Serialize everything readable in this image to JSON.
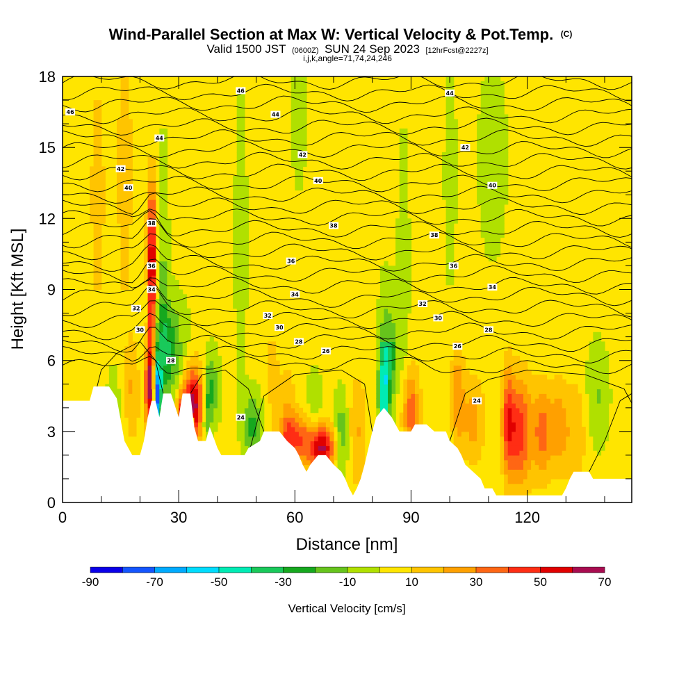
{
  "title": {
    "main": "Wind-Parallel Section at Max W: Vertical Velocity & Pot.Temp.",
    "main_suffix": "(C)",
    "valid_pre": "Valid 1500 JST",
    "valid_z": "(0600Z)",
    "valid_post": "SUN 24 Sep 2023",
    "fcst": "[12hrFcst@2227z]",
    "indices": "i,j,k,angle=71,74,24,246"
  },
  "chart_data": {
    "type": "heatmap",
    "xlabel": "Distance [nm]",
    "ylabel": "Height [Kft MSL]",
    "xlim": [
      0,
      147
    ],
    "ylim": [
      0,
      18
    ],
    "x_ticks": [
      0,
      30,
      60,
      90,
      120
    ],
    "x_tick_labels": [
      "0",
      "30",
      "60",
      "90",
      "120"
    ],
    "y_ticks": [
      0,
      3,
      6,
      9,
      12,
      15,
      18
    ],
    "y_tick_labels": [
      "0",
      "3",
      "6",
      "9",
      "12",
      "15",
      "18"
    ],
    "colorbar": {
      "title": "Vertical Velocity [cm/s]",
      "tick_labels": [
        "-90",
        "-70",
        "-50",
        "-30",
        "-10",
        "10",
        "30",
        "50",
        "70"
      ],
      "tick_values": [
        -90,
        -70,
        -50,
        -30,
        -10,
        10,
        30,
        50,
        70
      ],
      "bin_edges": [
        -90,
        -80,
        -70,
        -60,
        -50,
        -40,
        -30,
        -20,
        -10,
        0,
        10,
        20,
        30,
        40,
        50,
        60,
        70
      ],
      "colors": [
        "#0a00e8",
        "#1455ff",
        "#00aaff",
        "#00dcff",
        "#00ebb4",
        "#19c95a",
        "#16a81e",
        "#66c41c",
        "#b0e000",
        "#ffe500",
        "#ffc400",
        "#ffa000",
        "#ff6614",
        "#ff2d14",
        "#e00000",
        "#a80c50",
        "#5a108c"
      ]
    },
    "terrain_kft": [
      [
        0,
        4.3
      ],
      [
        7,
        4.3
      ],
      [
        8,
        4.9
      ],
      [
        12,
        4.9
      ],
      [
        14,
        4.4
      ],
      [
        15,
        3.5
      ],
      [
        16,
        2.6
      ],
      [
        17,
        2.3
      ],
      [
        18,
        2.0
      ],
      [
        20,
        2.0
      ],
      [
        21,
        2.6
      ],
      [
        22,
        3.6
      ],
      [
        23,
        4.3
      ],
      [
        24,
        4.3
      ],
      [
        25,
        3.6
      ],
      [
        26,
        4.6
      ],
      [
        28,
        4.6
      ],
      [
        30,
        3.6
      ],
      [
        31,
        4.6
      ],
      [
        33,
        4.6
      ],
      [
        34,
        3.2
      ],
      [
        35,
        2.6
      ],
      [
        37,
        2.6
      ],
      [
        38,
        3.2
      ],
      [
        40,
        2.3
      ],
      [
        41,
        2.0
      ],
      [
        47,
        2.0
      ],
      [
        48,
        2.3
      ],
      [
        51,
        2.6
      ],
      [
        52,
        3.0
      ],
      [
        56,
        3.0
      ],
      [
        58,
        2.6
      ],
      [
        60,
        2.3
      ],
      [
        61,
        2.0
      ],
      [
        62,
        1.6
      ],
      [
        63,
        1.3
      ],
      [
        64,
        1.6
      ],
      [
        66,
        2.0
      ],
      [
        68,
        2.0
      ],
      [
        70,
        1.6
      ],
      [
        72,
        1.3
      ],
      [
        73,
        1.0
      ],
      [
        74,
        0.6
      ],
      [
        75,
        0.3
      ],
      [
        76,
        0.6
      ],
      [
        77,
        1.0
      ],
      [
        78,
        1.6
      ],
      [
        79,
        2.3
      ],
      [
        80,
        3.0
      ],
      [
        81,
        3.6
      ],
      [
        83,
        4.0
      ],
      [
        85,
        3.6
      ],
      [
        86,
        3.3
      ],
      [
        87,
        3.0
      ],
      [
        90,
        3.0
      ],
      [
        91,
        3.3
      ],
      [
        94,
        3.3
      ],
      [
        96,
        3.0
      ],
      [
        99,
        3.0
      ],
      [
        100,
        2.6
      ],
      [
        102,
        2.3
      ],
      [
        103,
        2.0
      ],
      [
        104,
        1.6
      ],
      [
        106,
        1.3
      ],
      [
        108,
        1.0
      ],
      [
        109,
        0.6
      ],
      [
        111,
        0.6
      ],
      [
        112,
        0.3
      ],
      [
        129,
        0.3
      ],
      [
        130,
        0.6
      ],
      [
        131,
        1.0
      ],
      [
        132,
        1.3
      ],
      [
        136,
        1.3
      ],
      [
        137,
        1.0
      ],
      [
        147,
        1.0
      ]
    ],
    "theta_contour_labels": [
      {
        "value": "46",
        "x": 2,
        "y": 16.5
      },
      {
        "value": "46",
        "x": 46,
        "y": 17.4
      },
      {
        "value": "44",
        "x": 100,
        "y": 17.3
      },
      {
        "value": "44",
        "x": 25,
        "y": 15.4
      },
      {
        "value": "44",
        "x": 55,
        "y": 16.4
      },
      {
        "value": "42",
        "x": 15,
        "y": 14.1
      },
      {
        "value": "42",
        "x": 62,
        "y": 14.7
      },
      {
        "value": "42",
        "x": 104,
        "y": 15.0
      },
      {
        "value": "40",
        "x": 17,
        "y": 13.3
      },
      {
        "value": "40",
        "x": 66,
        "y": 13.6
      },
      {
        "value": "40",
        "x": 111,
        "y": 13.4
      },
      {
        "value": "38",
        "x": 23,
        "y": 11.8
      },
      {
        "value": "38",
        "x": 70,
        "y": 11.7
      },
      {
        "value": "38",
        "x": 96,
        "y": 11.3
      },
      {
        "value": "36",
        "x": 23,
        "y": 10.0
      },
      {
        "value": "36",
        "x": 59,
        "y": 10.2
      },
      {
        "value": "36",
        "x": 101,
        "y": 10.0
      },
      {
        "value": "34",
        "x": 23,
        "y": 9.0
      },
      {
        "value": "34",
        "x": 60,
        "y": 8.8
      },
      {
        "value": "34",
        "x": 111,
        "y": 9.1
      },
      {
        "value": "32",
        "x": 19,
        "y": 8.2
      },
      {
        "value": "32",
        "x": 53,
        "y": 7.9
      },
      {
        "value": "32",
        "x": 93,
        "y": 8.4
      },
      {
        "value": "30",
        "x": 20,
        "y": 7.3
      },
      {
        "value": "30",
        "x": 56,
        "y": 7.4
      },
      {
        "value": "30",
        "x": 97,
        "y": 7.8
      },
      {
        "value": "28",
        "x": 28,
        "y": 6.0
      },
      {
        "value": "28",
        "x": 61,
        "y": 6.8
      },
      {
        "value": "28",
        "x": 110,
        "y": 7.3
      },
      {
        "value": "26",
        "x": 68,
        "y": 6.4
      },
      {
        "value": "26",
        "x": 102,
        "y": 6.6
      },
      {
        "value": "24",
        "x": 46,
        "y": 3.6
      },
      {
        "value": "24",
        "x": 107,
        "y": 4.3
      }
    ]
  }
}
